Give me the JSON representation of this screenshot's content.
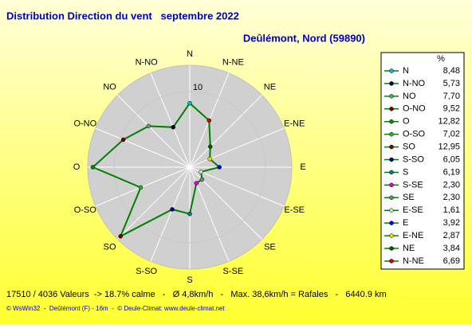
{
  "chart_data": {
    "type": "radar",
    "title": "Distribution Direction du vent   septembre 2022",
    "subtitle": "Deûlémont, Nord (59890)",
    "unit_label": "%",
    "categories": [
      "N",
      "N-NO",
      "NO",
      "O-NO",
      "O",
      "O-SO",
      "SO",
      "S-SO",
      "S",
      "S-SE",
      "SE",
      "E-SE",
      "E",
      "E-NE",
      "NE",
      "N-NE"
    ],
    "values": [
      8.48,
      5.73,
      7.7,
      9.52,
      12.82,
      7.02,
      12.95,
      6.05,
      6.19,
      2.3,
      2.3,
      1.61,
      3.92,
      2.87,
      3.84,
      6.69
    ],
    "value_labels": [
      "8,48",
      "5,73",
      "7,70",
      "9,52",
      "12,82",
      "7,02",
      "12,95",
      "6,05",
      "6,19",
      "2,30",
      "2,30",
      "1,61",
      "3,92",
      "2,87",
      "3,84",
      "6,69"
    ],
    "colors": [
      "#00c0c0",
      "#000040",
      "#60a060",
      "#800000",
      "#009000",
      "#30b030",
      "#800000",
      "#000080",
      "#008080",
      "#e000e0",
      "#808080",
      "#c0e0c0",
      "#0000ff",
      "#e0e000",
      "#006000",
      "#e00000"
    ],
    "line_color": "#008000",
    "rlim": [
      0,
      13.5
    ],
    "rticks": [
      10
    ],
    "footer": "17510 / 4036 Valeurs  -> 18.7% calme   -   Ø 4,8km/h   -   Max. 38,6km/h = Rafales   -   6440.9 km",
    "credits": "© WsWin32  -  Deûlémont (F) - 16m  -  © Deule-Climat: www.deule-climat.net"
  }
}
